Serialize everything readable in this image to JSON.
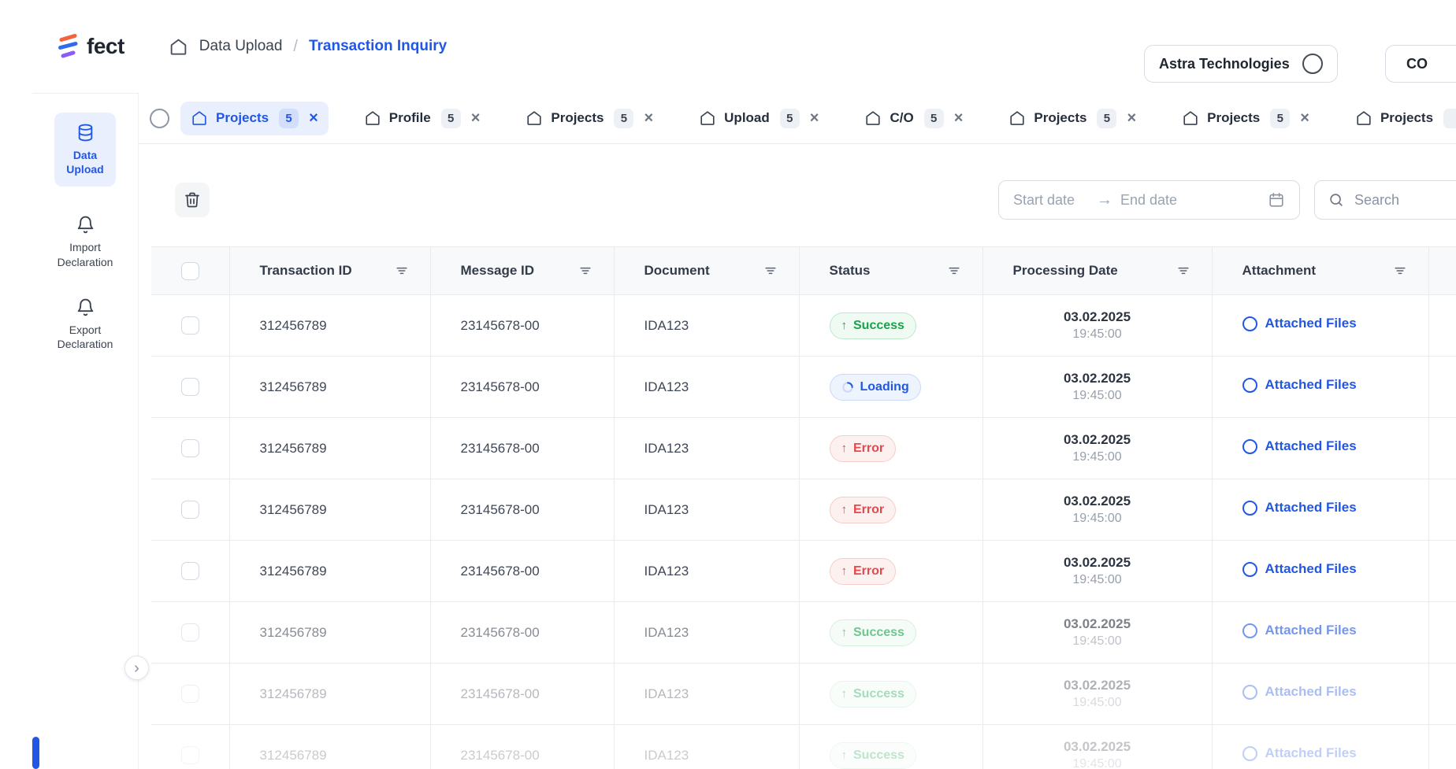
{
  "colors": {
    "accent": "#2257e4",
    "accent_soft": "#e9effc",
    "success": "#18a34a",
    "success_soft": "#effaf3",
    "success_border": "#bfe7cb",
    "error": "#e5484d",
    "error_soft": "#fdf1f0",
    "error_border": "#f6ccc8",
    "loading_soft": "#eef4fe",
    "loading_border": "#c9d9f8"
  },
  "icons": {
    "close": "×",
    "chevron_right": "›",
    "breadcrumb_separator": "/",
    "date_range_arrow": "→",
    "arrow_up": "↑"
  },
  "header": {
    "logo_text": "fect",
    "breadcrumb_root": "Data Upload",
    "breadcrumb_current": "Transaction Inquiry",
    "org_name": "Astra Technologies",
    "user_initials": "CO"
  },
  "tabs": [
    {
      "label": "Projects",
      "count": "5",
      "active": true
    },
    {
      "label": "Profile",
      "count": "5",
      "active": false
    },
    {
      "label": "Projects",
      "count": "5",
      "active": false
    },
    {
      "label": "Upload",
      "count": "5",
      "active": false
    },
    {
      "label": "C/O",
      "count": "5",
      "active": false
    },
    {
      "label": "Projects",
      "count": "5",
      "active": false
    },
    {
      "label": "Projects",
      "count": "5",
      "active": false
    },
    {
      "label": "Projects",
      "count": "",
      "active": false
    }
  ],
  "sidebar": {
    "items": [
      {
        "label": "Data Upload",
        "icon": "database-icon",
        "active": true
      },
      {
        "label": "Import Declaration",
        "icon": "bell-icon",
        "active": false
      },
      {
        "label": "Export Declaration",
        "icon": "bell-icon",
        "active": false
      }
    ]
  },
  "toolbar": {
    "start_date_placeholder": "Start date",
    "end_date_placeholder": "End date",
    "search_placeholder": "Search"
  },
  "table": {
    "columns": [
      {
        "key": "transaction_id",
        "label": "Transaction ID"
      },
      {
        "key": "message_id",
        "label": "Message ID"
      },
      {
        "key": "document",
        "label": "Document"
      },
      {
        "key": "status",
        "label": "Status"
      },
      {
        "key": "processing_date",
        "label": "Processing Date"
      },
      {
        "key": "attachment",
        "label": "Attachment"
      }
    ],
    "rows": [
      {
        "transaction_id": "312456789",
        "message_id": "23145678-00",
        "document": "IDA123",
        "status": "Success",
        "date": "03.02.2025",
        "time": "19:45:00",
        "attachment": "Attached Files"
      },
      {
        "transaction_id": "312456789",
        "message_id": "23145678-00",
        "document": "IDA123",
        "status": "Loading",
        "date": "03.02.2025",
        "time": "19:45:00",
        "attachment": "Attached Files"
      },
      {
        "transaction_id": "312456789",
        "message_id": "23145678-00",
        "document": "IDA123",
        "status": "Error",
        "date": "03.02.2025",
        "time": "19:45:00",
        "attachment": "Attached Files"
      },
      {
        "transaction_id": "312456789",
        "message_id": "23145678-00",
        "document": "IDA123",
        "status": "Error",
        "date": "03.02.2025",
        "time": "19:45:00",
        "attachment": "Attached Files"
      },
      {
        "transaction_id": "312456789",
        "message_id": "23145678-00",
        "document": "IDA123",
        "status": "Error",
        "date": "03.02.2025",
        "time": "19:45:00",
        "attachment": "Attached Files"
      },
      {
        "transaction_id": "312456789",
        "message_id": "23145678-00",
        "document": "IDA123",
        "status": "Success",
        "date": "03.02.2025",
        "time": "19:45:00",
        "attachment": "Attached Files"
      },
      {
        "transaction_id": "312456789",
        "message_id": "23145678-00",
        "document": "IDA123",
        "status": "Success",
        "date": "03.02.2025",
        "time": "19:45:00",
        "attachment": "Attached Files"
      },
      {
        "transaction_id": "312456789",
        "message_id": "23145678-00",
        "document": "IDA123",
        "status": "Success",
        "date": "03.02.2025",
        "time": "19:45:00",
        "attachment": "Attached Files"
      }
    ]
  }
}
